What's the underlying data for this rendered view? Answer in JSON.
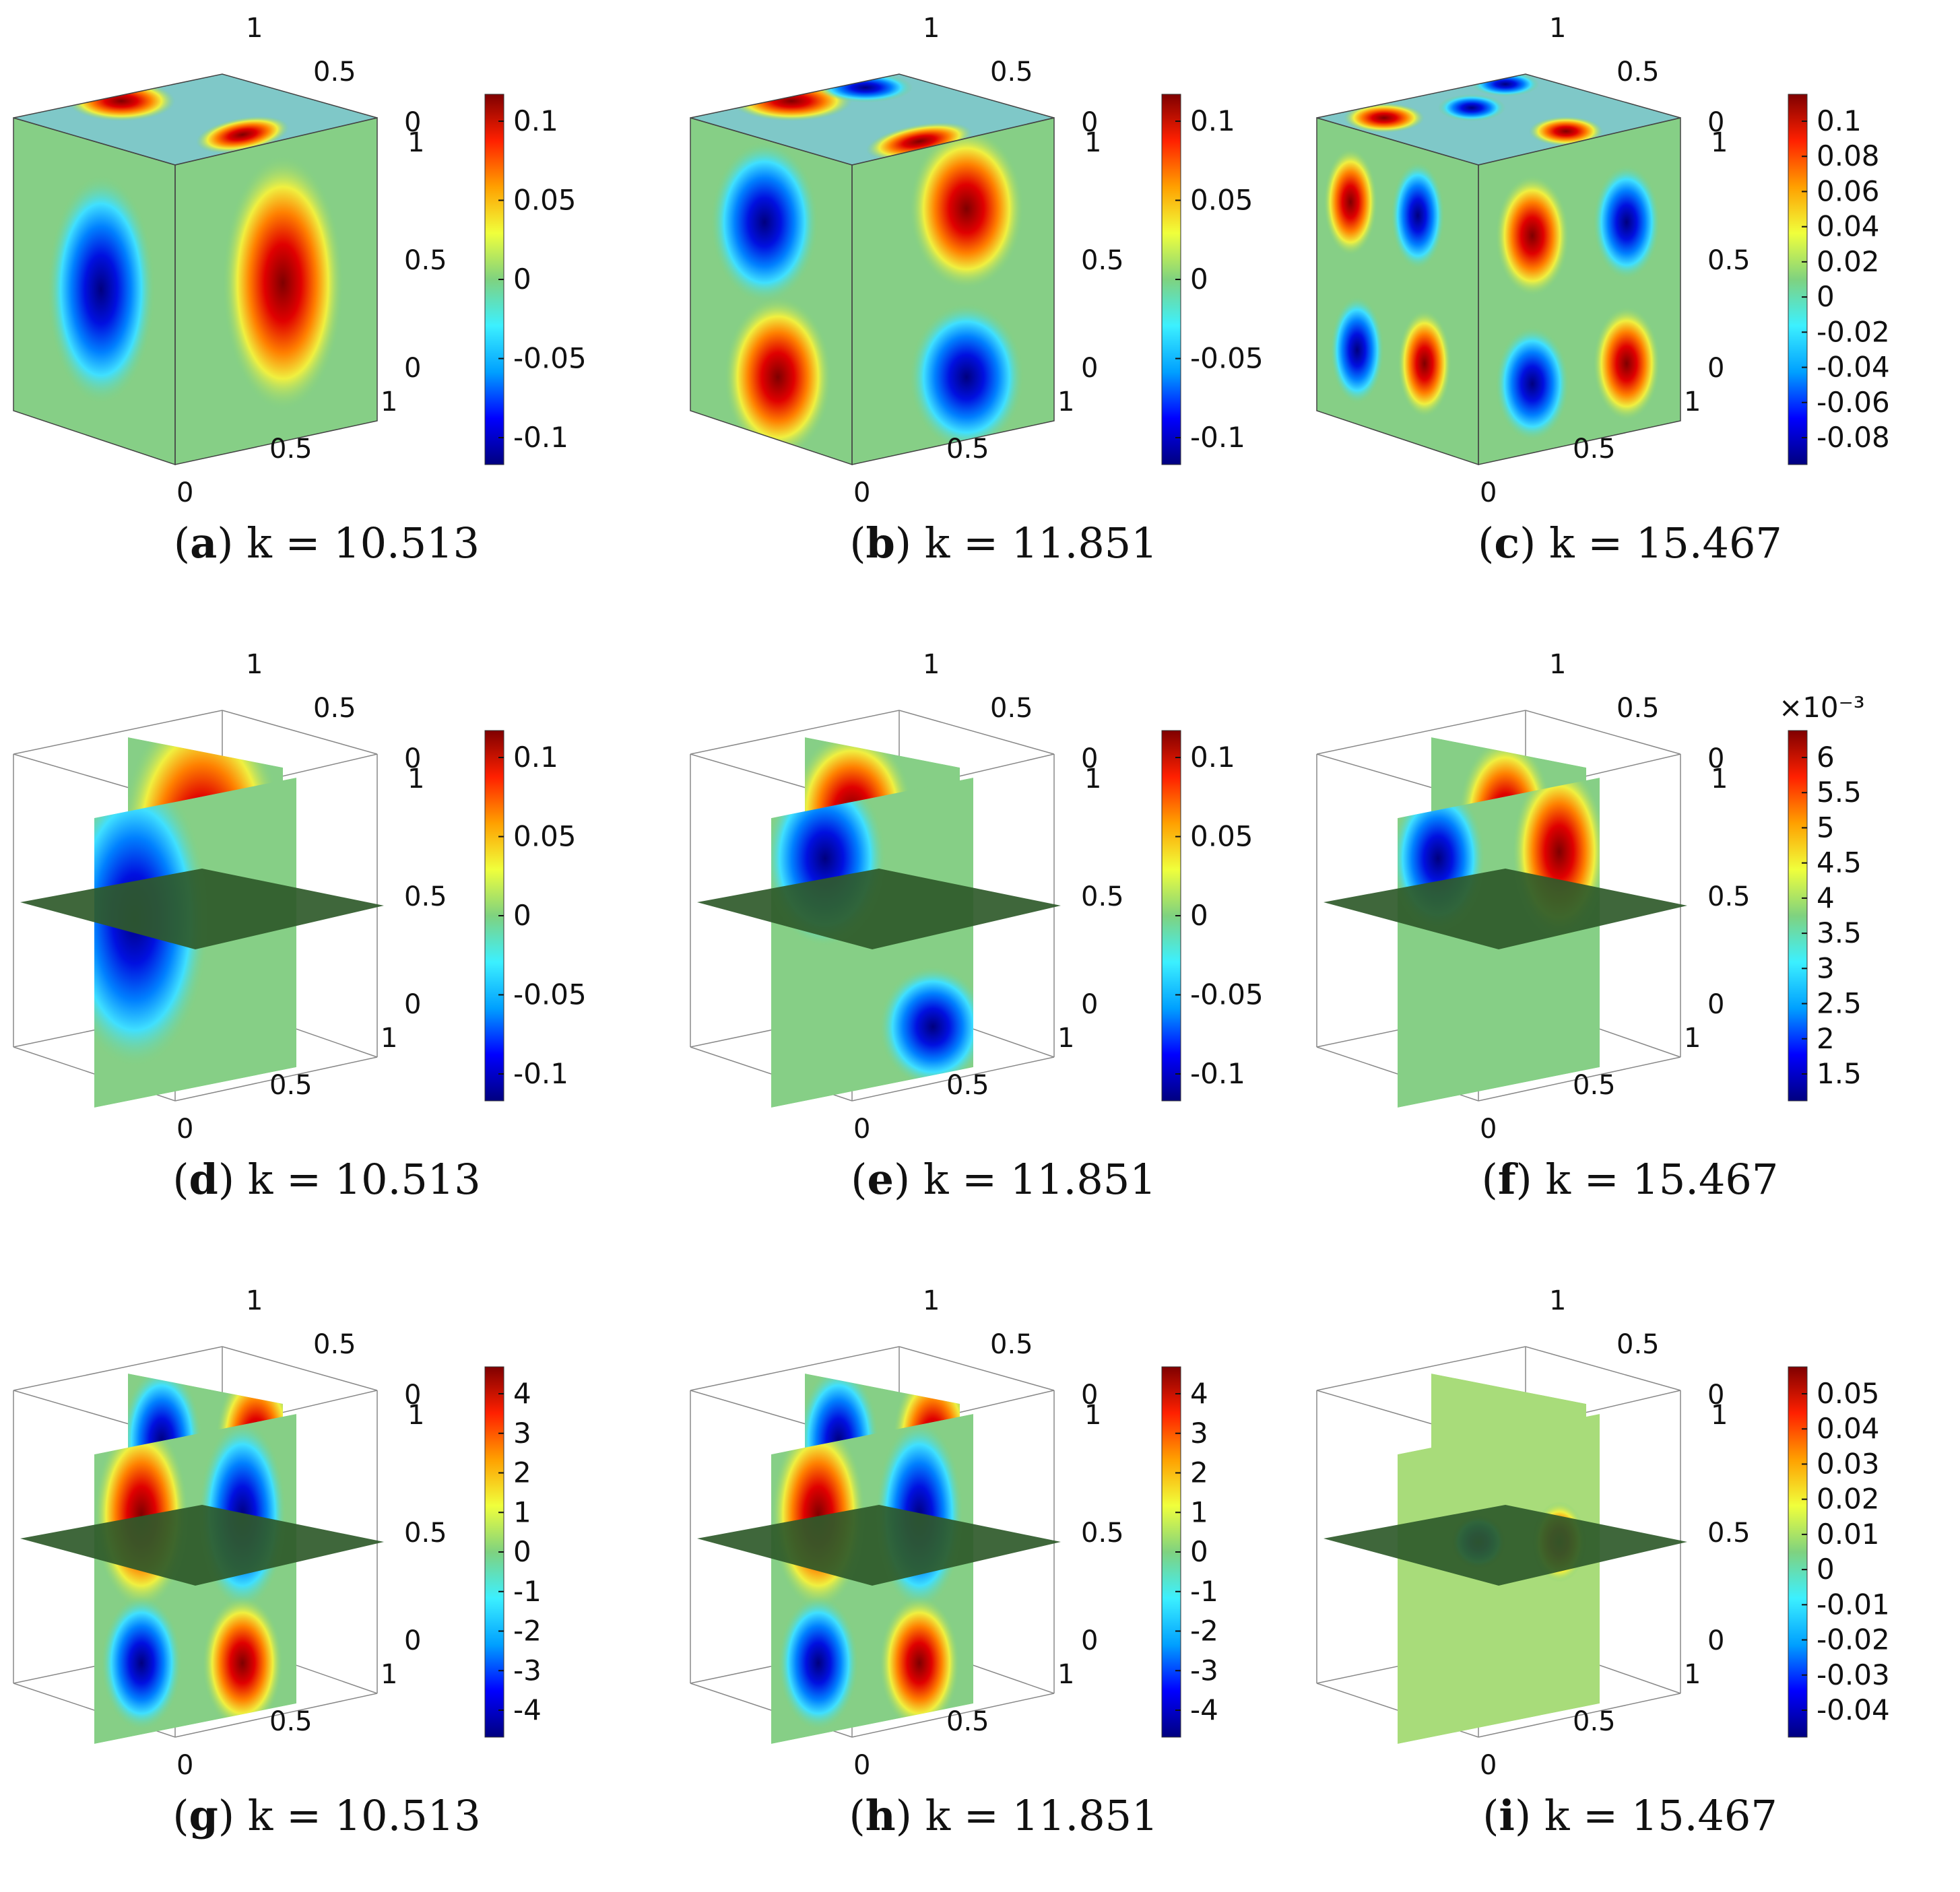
{
  "figure": {
    "panels": [
      {
        "id": "a",
        "letter": "a",
        "k_label": "k = 10.513",
        "mode": "solid",
        "cb_ticks": [
          "0.1",
          "0.05",
          "0",
          "-0.05",
          "-0.1"
        ],
        "cb_exponent": ""
      },
      {
        "id": "b",
        "letter": "b",
        "k_label": "k = 11.851",
        "mode": "solid",
        "cb_ticks": [
          "0.1",
          "0.05",
          "0",
          "-0.05",
          "-0.1"
        ],
        "cb_exponent": ""
      },
      {
        "id": "c",
        "letter": "c",
        "k_label": "k = 15.467",
        "mode": "solid",
        "cb_ticks": [
          "0.1",
          "0.08",
          "0.06",
          "0.04",
          "0.02",
          "0",
          "-0.02",
          "-0.04",
          "-0.06",
          "-0.08"
        ],
        "cb_exponent": ""
      },
      {
        "id": "d",
        "letter": "d",
        "k_label": "k = 10.513",
        "mode": "slice",
        "cb_ticks": [
          "0.1",
          "0.05",
          "0",
          "-0.05",
          "-0.1"
        ],
        "cb_exponent": ""
      },
      {
        "id": "e",
        "letter": "e",
        "k_label": "k = 11.851",
        "mode": "slice",
        "cb_ticks": [
          "0.1",
          "0.05",
          "0",
          "-0.05",
          "-0.1"
        ],
        "cb_exponent": ""
      },
      {
        "id": "f",
        "letter": "f",
        "k_label": "k = 15.467",
        "mode": "slice",
        "cb_ticks": [
          "6",
          "5.5",
          "5",
          "4.5",
          "4",
          "3.5",
          "3",
          "2.5",
          "2",
          "1.5"
        ],
        "cb_exponent": "×10⁻³"
      },
      {
        "id": "g",
        "letter": "g",
        "k_label": "k = 10.513",
        "mode": "slice",
        "cb_ticks": [
          "4",
          "3",
          "2",
          "1",
          "0",
          "-1",
          "-2",
          "-3",
          "-4"
        ],
        "cb_exponent": ""
      },
      {
        "id": "h",
        "letter": "h",
        "k_label": "k = 11.851",
        "mode": "slice",
        "cb_ticks": [
          "4",
          "3",
          "2",
          "1",
          "0",
          "-1",
          "-2",
          "-3",
          "-4"
        ],
        "cb_exponent": ""
      },
      {
        "id": "i",
        "letter": "i",
        "k_label": "k = 15.467",
        "mode": "slice",
        "cb_ticks": [
          "0.05",
          "0.04",
          "0.03",
          "0.02",
          "0.01",
          "0",
          "-0.01",
          "-0.02",
          "-0.03",
          "-0.04"
        ],
        "cb_exponent": ""
      }
    ],
    "axis_ticks": {
      "top": [
        "1",
        "0.5",
        "0"
      ],
      "right": [
        "1",
        "0.5",
        "0"
      ],
      "bottom": [
        "1",
        "0.5",
        "0"
      ]
    },
    "colormap": [
      "#00007f",
      "#0000ff",
      "#00a0ff",
      "#3cf0ff",
      "#7fd27f",
      "#f0ff3c",
      "#ffa000",
      "#ff2000",
      "#7f0000"
    ]
  }
}
